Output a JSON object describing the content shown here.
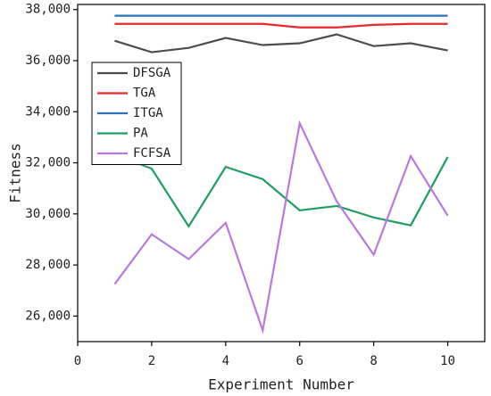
{
  "chart_data": {
    "type": "line",
    "x_label": "Experiment Number",
    "y_label": "Fitness",
    "x": [
      1,
      2,
      3,
      4,
      5,
      6,
      7,
      8,
      9,
      10
    ],
    "series": [
      {
        "name": "DFSGA",
        "color": "#4d4d4d",
        "values": [
          36780,
          36330,
          36500,
          36890,
          36610,
          36680,
          37030,
          36570,
          36680,
          36400
        ]
      },
      {
        "name": "TGA",
        "color": "#e8282b",
        "values": [
          37440,
          37440,
          37440,
          37440,
          37440,
          37300,
          37300,
          37400,
          37440,
          37440
        ]
      },
      {
        "name": "ITGA",
        "color": "#2a72b8",
        "values": [
          37760,
          37760,
          37760,
          37760,
          37760,
          37760,
          37760,
          37760,
          37760,
          37760
        ]
      },
      {
        "name": "PA",
        "color": "#1f9e63",
        "values": [
          32330,
          31770,
          29510,
          31840,
          31360,
          30140,
          30310,
          29860,
          29550,
          32230
        ]
      },
      {
        "name": "FCFSA",
        "color": "#b979e0",
        "values": [
          27250,
          29200,
          28230,
          29650,
          25440,
          33550,
          30490,
          28400,
          32260,
          29930
        ]
      }
    ],
    "xlim": [
      0,
      11
    ],
    "xticks": [
      0,
      2,
      4,
      6,
      8,
      10
    ],
    "ylim": [
      25000,
      38200
    ],
    "yticks": [
      {
        "value": 26000,
        "label": "26,000"
      },
      {
        "value": 28000,
        "label": "28,000"
      },
      {
        "value": 30000,
        "label": "30,000"
      },
      {
        "value": 32000,
        "label": "32,000"
      },
      {
        "value": 34000,
        "label": "34,000"
      },
      {
        "value": 36000,
        "label": "36,000"
      },
      {
        "value": 38000,
        "label": "38,000"
      }
    ],
    "legend": "upper left"
  }
}
